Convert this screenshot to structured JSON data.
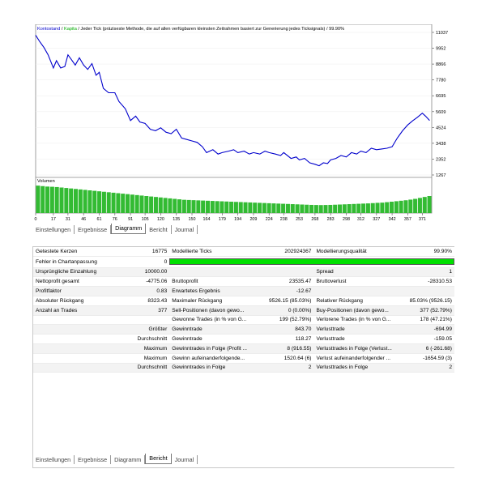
{
  "colors": {
    "balance": "#0000cc",
    "equity": "#00aa00",
    "volume": "#33bb33",
    "quality_bar": "#00e000"
  },
  "chart": {
    "header_balance": "Kontostand",
    "header_sep": " / ",
    "header_equity": "Kapita",
    "header_rest": " / Jeder Tick (präziseste Methode, die auf allen verfügbaren kleinsten Zeitrahmen basiert zur Generierung jedes Ticksignals) / 99.90%",
    "volume_label": "Volumen",
    "y_ticks": [
      "11037",
      "9952",
      "8866",
      "7780",
      "6695",
      "5609",
      "4524",
      "3438",
      "2352",
      "1267"
    ],
    "x_ticks": [
      "0",
      "17",
      "31",
      "46",
      "61",
      "76",
      "91",
      "105",
      "120",
      "135",
      "150",
      "164",
      "179",
      "194",
      "209",
      "224",
      "238",
      "253",
      "268",
      "283",
      "298",
      "312",
      "327",
      "342",
      "357",
      "371"
    ]
  },
  "chart_data": {
    "type": "line",
    "title": "",
    "xlabel": "",
    "ylabel": "",
    "ylim": [
      1267,
      11037
    ],
    "xlim": [
      0,
      380
    ],
    "series": [
      {
        "name": "Kontostand",
        "x": [
          0,
          4,
          8,
          12,
          17,
          20,
          24,
          28,
          31,
          34,
          38,
          42,
          46,
          50,
          54,
          58,
          61,
          65,
          70,
          76,
          80,
          86,
          91,
          96,
          100,
          105,
          110,
          115,
          120,
          125,
          130,
          135,
          140,
          145,
          150,
          155,
          160,
          164,
          170,
          175,
          179,
          185,
          190,
          194,
          200,
          205,
          209,
          215,
          220,
          224,
          230,
          235,
          238,
          245,
          250,
          253,
          258,
          263,
          268,
          272,
          276,
          280,
          283,
          288,
          293,
          298,
          303,
          308,
          312,
          317,
          322,
          327,
          332,
          337,
          342,
          347,
          352,
          357,
          362,
          366,
          371,
          374,
          378
        ],
        "y": [
          10850,
          10400,
          10000,
          9500,
          8600,
          9100,
          8600,
          8700,
          9500,
          9200,
          8800,
          9300,
          8800,
          8500,
          8900,
          8100,
          8300,
          7200,
          6900,
          6900,
          6300,
          5800,
          5000,
          5300,
          4900,
          4800,
          4400,
          4300,
          4500,
          4200,
          4100,
          4400,
          3800,
          3700,
          3600,
          3500,
          3200,
          2800,
          3000,
          2700,
          2800,
          2900,
          3000,
          2800,
          2900,
          2700,
          2800,
          2700,
          2900,
          2800,
          2700,
          2600,
          2800,
          2400,
          2500,
          2300,
          2400,
          2100,
          2000,
          1900,
          2100,
          2050,
          2300,
          2400,
          2600,
          2500,
          2800,
          2700,
          2900,
          2800,
          3100,
          3000,
          3050,
          3100,
          3200,
          3800,
          4300,
          4700,
          5000,
          5200,
          5500,
          5300,
          5000
        ]
      }
    ],
    "volume": [
      2900,
      2850,
      2800,
      2780,
      2750,
      2700,
      2650,
      2600,
      2550,
      2500,
      2450,
      2400,
      2350,
      2300,
      2250,
      2200,
      2150,
      2100,
      2050,
      2000,
      1950,
      1900,
      1850,
      1800,
      1750,
      1700,
      1650,
      1600,
      1550,
      1500,
      1450,
      1400,
      1380,
      1360,
      1340,
      1320,
      1300,
      1280,
      1260,
      1240,
      1220,
      1200,
      1180,
      1160,
      1140,
      1120,
      1100,
      1080,
      1060,
      1040,
      1020,
      1000,
      980,
      960,
      940,
      920,
      900,
      880,
      860,
      850,
      840,
      850,
      860,
      880,
      900,
      920,
      940,
      960,
      980,
      1000,
      1020,
      1050,
      1080,
      1100,
      1150,
      1200,
      1250,
      1300,
      1350,
      1420,
      1500,
      1600,
      1700,
      1800
    ]
  },
  "tabs_top": [
    "Einstellungen",
    "Ergebnisse",
    "Diagramm",
    "Bericht",
    "Journal"
  ],
  "tabs_bottom": [
    "Einstellungen",
    "Ergebnisse",
    "Diagramm",
    "Bericht",
    "Journal"
  ],
  "report": {
    "r1": {
      "l1": "Getestete Kerzen",
      "v1": "16775",
      "l2": "Modellierte Ticks",
      "v2": "202924367",
      "l3": "Modellierungsqualität",
      "v3": "99.90%"
    },
    "r2": {
      "l1": "Fehler in Chartanpassung",
      "v1": "0"
    },
    "r3": {
      "l1": "Ursprüngliche Einzahlung",
      "v1": "10000.00",
      "l3": "Spread",
      "v3": "1"
    },
    "r4": {
      "l1": "Nettoprofit gesamt",
      "v1": "-4775.06",
      "l2": "Bruttoprofit",
      "v2": "23535.47",
      "l3": "Bruttoverlust",
      "v3": "-28310.53"
    },
    "r5": {
      "l1": "Profitfaktor",
      "v1": "0.83",
      "l2": "Erwartetes Ergebnis",
      "v2": "-12.67"
    },
    "r6": {
      "l1": "Absoluter Rückgang",
      "v1": "8323.43",
      "l2": "Maximaler Rückgang",
      "v2": "9526.15 (85.03%)",
      "l3": "Relativer Rückgang",
      "v3": "85.03% (9526.15)"
    },
    "r7": {
      "l1": "Anzahl an Trades",
      "v1": "377",
      "l2": "Sell-Positionen (davon gewo...",
      "v2": "0 (0.00%)",
      "l3": "Buy-Positionen (davon gewo...",
      "v3": "377 (52.79%)"
    },
    "r8": {
      "l2": "Gewonne Trades (in % von G...",
      "v2": "199 (52.79%)",
      "l3": "Verlorene Trades (in % von G...",
      "v3": "178 (47.21%)"
    },
    "r9": {
      "l1": "Größter",
      "l2": "Gewinntrade",
      "v2": "843.70",
      "l3": "Verlusttrade",
      "v3": "-694.99"
    },
    "r10": {
      "l1": "Durchschnitt",
      "l2": "Gewinntrade",
      "v2": "118.27",
      "l3": "Verlusttrade",
      "v3": "-159.05"
    },
    "r11": {
      "l1": "Maximum",
      "l2": "Gewinntrades in Folge (Profit ...",
      "v2": "8 (916.55)",
      "l3": "Verlusttrades in Folge (Verlust...",
      "v3": "6 (-261.68)"
    },
    "r12": {
      "l1": "Maximum",
      "l2": "Gewinn aufeinanderfolgende...",
      "v2": "1520.64 (6)",
      "l3": "Verlust aufeinanderfolgender ...",
      "v3": "-1654.59 (3)"
    },
    "r13": {
      "l1": "Durchschnitt",
      "l2": "Gewinntrades in Folge",
      "v2": "2",
      "l3": "Verlusttrades in Folge",
      "v3": "2"
    },
    "quality_fraction": 0.999
  }
}
